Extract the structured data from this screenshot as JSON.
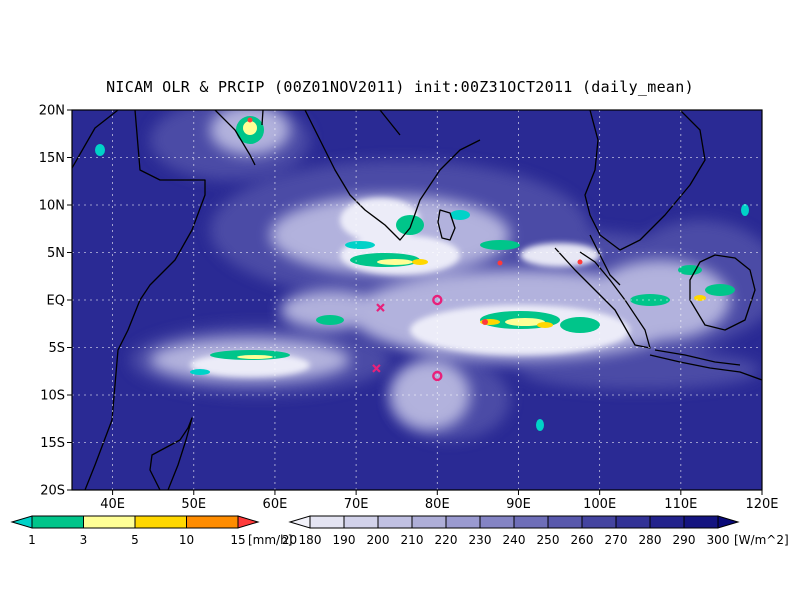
{
  "title": "NICAM OLR & PRCIP (00Z01NOV2011) init:00Z31OCT2011 (daily_mean)",
  "map": {
    "lon_range": [
      35,
      120
    ],
    "lat_range": [
      -20,
      20
    ],
    "lat_ticks": [
      {
        "value": 20,
        "label": "20N"
      },
      {
        "value": 15,
        "label": "15N"
      },
      {
        "value": 10,
        "label": "10N"
      },
      {
        "value": 5,
        "label": "5N"
      },
      {
        "value": 0,
        "label": "EQ"
      },
      {
        "value": -5,
        "label": "5S"
      },
      {
        "value": -10,
        "label": "10S"
      },
      {
        "value": -15,
        "label": "15S"
      },
      {
        "value": -20,
        "label": "20S"
      }
    ],
    "lon_ticks": [
      {
        "value": 40,
        "label": "40E"
      },
      {
        "value": 50,
        "label": "50E"
      },
      {
        "value": 60,
        "label": "60E"
      },
      {
        "value": 70,
        "label": "70E"
      },
      {
        "value": 80,
        "label": "80E"
      },
      {
        "value": 90,
        "label": "90E"
      },
      {
        "value": 100,
        "label": "100E"
      },
      {
        "value": 110,
        "label": "110E"
      },
      {
        "value": 120,
        "label": "120E"
      }
    ],
    "markers": [
      {
        "type": "x",
        "lon": 73,
        "lat": -0.8,
        "color": "#e8207a"
      },
      {
        "type": "x",
        "lon": 72.5,
        "lat": -7.2,
        "color": "#e8207a"
      },
      {
        "type": "o",
        "lon": 80,
        "lat": 0,
        "color": "#e8207a"
      },
      {
        "type": "o",
        "lon": 80,
        "lat": -8,
        "color": "#e8207a"
      }
    ]
  },
  "precip_legend": {
    "labels": [
      "1",
      "3",
      "5",
      "10",
      "15",
      "20"
    ],
    "unit": "[mm/h]",
    "colors": [
      "#00d2c8",
      "#00c58a",
      "#ffff96",
      "#ffd700",
      "#ff8c00",
      "#ff3a3a"
    ]
  },
  "olr_legend": {
    "labels": [
      "180",
      "190",
      "200",
      "210",
      "220",
      "230",
      "240",
      "250",
      "260",
      "270",
      "280",
      "290",
      "300"
    ],
    "unit": "[W/m^2]",
    "colors": [
      "#f2f2fa",
      "#e4e4f2",
      "#d2d2ea",
      "#c0c0e2",
      "#aeaed8",
      "#9a9ad0",
      "#8484c4",
      "#6e6eb8",
      "#5858ac",
      "#4444a0",
      "#323296",
      "#22228c",
      "#141480",
      "#0a0a78"
    ]
  }
}
